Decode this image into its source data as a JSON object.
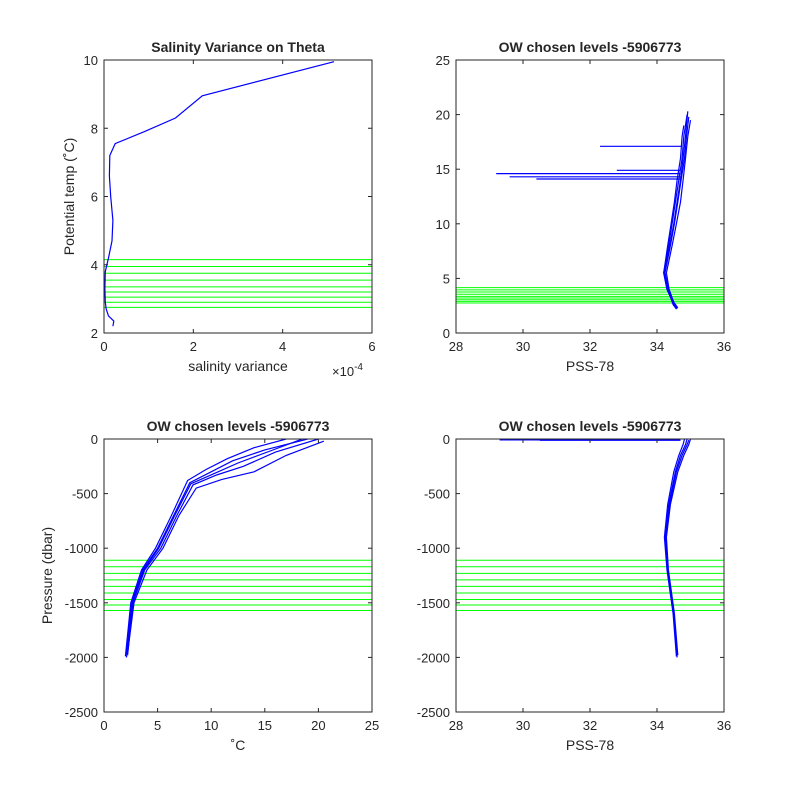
{
  "chart_data": [
    {
      "type": "line",
      "title": "Salinity Variance on Theta",
      "xlabel": "salinity variance",
      "ylabel": "Potential temp (˚C)",
      "x_exponent": "×10",
      "x_exponent_power": "-4",
      "xlim": [
        0,
        6
      ],
      "ylim": [
        2,
        10
      ],
      "xticks": [
        0,
        2,
        4,
        6
      ],
      "yticks": [
        2,
        4,
        6,
        8,
        10
      ],
      "xtick_labels": [
        "0",
        "2",
        "4",
        "6"
      ],
      "ytick_labels": [
        "2",
        "4",
        "6",
        "8",
        "10"
      ],
      "series": [
        {
          "color": "#0000ff",
          "points": [
            [
              0.2,
              2.2
            ],
            [
              0.22,
              2.35
            ],
            [
              0.1,
              2.5
            ],
            [
              0.05,
              2.7
            ],
            [
              0.03,
              2.9
            ],
            [
              0.02,
              3.3
            ],
            [
              0.03,
              3.8
            ],
            [
              0.1,
              4.2
            ],
            [
              0.18,
              4.7
            ],
            [
              0.2,
              5.3
            ],
            [
              0.15,
              6.0
            ],
            [
              0.12,
              6.6
            ],
            [
              0.13,
              7.2
            ],
            [
              0.25,
              7.55
            ],
            [
              0.9,
              7.9
            ],
            [
              1.6,
              8.3
            ],
            [
              2.2,
              8.95
            ],
            [
              5.15,
              9.95
            ]
          ]
        }
      ],
      "chosen_levels": {
        "color": "#00ff00",
        "values": [
          2.75,
          2.9,
          3.05,
          3.2,
          3.35,
          3.55,
          3.75,
          3.95,
          4.15
        ]
      }
    },
    {
      "type": "line",
      "title": "OW chosen levels -5906773",
      "xlabel": "PSS-78",
      "ylabel": "",
      "xlim": [
        28,
        36
      ],
      "ylim": [
        0,
        25
      ],
      "xticks": [
        28,
        30,
        32,
        34,
        36
      ],
      "yticks": [
        0,
        5,
        10,
        15,
        20,
        25
      ],
      "xtick_labels": [
        "28",
        "30",
        "32",
        "34",
        "36"
      ],
      "ytick_labels": [
        "0",
        "5",
        "10",
        "15",
        "20",
        "25"
      ],
      "series": [
        {
          "color": "#0000ff",
          "profiles": [
            [
              [
                34.6,
                2.2
              ],
              [
                34.5,
                2.6
              ],
              [
                34.3,
                4.0
              ],
              [
                34.2,
                5.5
              ],
              [
                34.35,
                8
              ],
              [
                34.45,
                10
              ],
              [
                34.55,
                12
              ],
              [
                34.65,
                14
              ],
              [
                34.75,
                16
              ],
              [
                34.8,
                18
              ],
              [
                34.9,
                20
              ]
            ],
            [
              [
                34.62,
                2.3
              ],
              [
                34.52,
                2.7
              ],
              [
                34.34,
                4.0
              ],
              [
                34.24,
                5.5
              ],
              [
                34.4,
                8
              ],
              [
                34.52,
                10
              ],
              [
                34.62,
                12
              ],
              [
                34.72,
                14
              ],
              [
                34.82,
                16
              ],
              [
                34.88,
                18
              ],
              [
                34.95,
                19.8
              ]
            ],
            [
              [
                34.58,
                2.2
              ],
              [
                34.48,
                2.6
              ],
              [
                34.32,
                4.0
              ],
              [
                34.22,
                5.5
              ],
              [
                34.38,
                8
              ],
              [
                34.5,
                10
              ],
              [
                34.6,
                12
              ],
              [
                34.7,
                14
              ],
              [
                34.78,
                16
              ],
              [
                34.85,
                18
              ],
              [
                34.92,
                20.3
              ]
            ],
            [
              [
                34.6,
                2.4
              ],
              [
                34.5,
                2.8
              ],
              [
                34.36,
                4.0
              ],
              [
                34.28,
                5.5
              ],
              [
                34.45,
                8
              ],
              [
                34.58,
                10
              ],
              [
                34.7,
                12
              ],
              [
                34.78,
                14
              ],
              [
                34.85,
                16
              ],
              [
                34.92,
                18
              ],
              [
                35.0,
                19.5
              ]
            ],
            [
              [
                34.61,
                2.3
              ],
              [
                34.49,
                2.7
              ],
              [
                34.3,
                4.0
              ],
              [
                34.2,
                5.5
              ],
              [
                34.32,
                8
              ],
              [
                34.42,
                10
              ],
              [
                34.52,
                12
              ],
              [
                34.6,
                14
              ],
              [
                34.7,
                16
              ],
              [
                34.75,
                18
              ],
              [
                34.8,
                19.0
              ]
            ]
          ],
          "spikes": [
            [
              [
                34.75,
                17.1
              ],
              [
                32.3,
                17.1
              ]
            ],
            [
              [
                34.7,
                14.9
              ],
              [
                32.8,
                14.9
              ]
            ],
            [
              [
                34.7,
                14.6
              ],
              [
                29.2,
                14.6
              ]
            ],
            [
              [
                34.7,
                14.3
              ],
              [
                29.6,
                14.3
              ]
            ],
            [
              [
                34.7,
                14.1
              ],
              [
                30.4,
                14.1
              ]
            ]
          ]
        }
      ],
      "chosen_levels": {
        "color": "#00ff00",
        "values": [
          2.75,
          2.9,
          3.05,
          3.2,
          3.35,
          3.55,
          3.75,
          3.95,
          4.15
        ]
      }
    },
    {
      "type": "line",
      "title": "OW chosen levels -5906773",
      "xlabel": "˚C",
      "ylabel": "Pressure (dbar)",
      "xlim": [
        0,
        25
      ],
      "ylim": [
        -2500,
        0
      ],
      "xticks": [
        0,
        5,
        10,
        15,
        20,
        25
      ],
      "yticks": [
        -2500,
        -2000,
        -1500,
        -1000,
        -500,
        0
      ],
      "xtick_labels": [
        "0",
        "5",
        "10",
        "15",
        "20",
        "25"
      ],
      "ytick_labels": [
        "-2500",
        "-2000",
        "-1500",
        "-1000",
        "-500",
        "0"
      ],
      "series": [
        {
          "color": "#0000ff",
          "profiles": [
            [
              [
                2.1,
                -2000
              ],
              [
                2.6,
                -1500
              ],
              [
                3.6,
                -1200
              ],
              [
                5,
                -1000
              ],
              [
                6.5,
                -700
              ],
              [
                8,
                -400
              ],
              [
                10,
                -300
              ],
              [
                12,
                -200
              ],
              [
                15,
                -100
              ],
              [
                19,
                0
              ]
            ],
            [
              [
                2.2,
                -1980
              ],
              [
                2.7,
                -1500
              ],
              [
                3.8,
                -1200
              ],
              [
                5.3,
                -1000
              ],
              [
                6.8,
                -700
              ],
              [
                8.3,
                -420
              ],
              [
                10.5,
                -330
              ],
              [
                13,
                -250
              ],
              [
                16,
                -120
              ],
              [
                20,
                0
              ]
            ],
            [
              [
                2.0,
                -1990
              ],
              [
                2.5,
                -1500
              ],
              [
                3.5,
                -1200
              ],
              [
                4.8,
                -1000
              ],
              [
                6.3,
                -700
              ],
              [
                7.8,
                -380
              ],
              [
                9.5,
                -280
              ],
              [
                11.5,
                -180
              ],
              [
                14,
                -80
              ],
              [
                17,
                0
              ]
            ],
            [
              [
                2.2,
                -1960
              ],
              [
                2.8,
                -1500
              ],
              [
                4.0,
                -1200
              ],
              [
                5.5,
                -1000
              ],
              [
                7.0,
                -700
              ],
              [
                8.6,
                -450
              ],
              [
                11,
                -370
              ],
              [
                14,
                -300
              ],
              [
                17,
                -150
              ],
              [
                20.5,
                -20
              ]
            ],
            [
              [
                2.1,
                -1970
              ],
              [
                2.6,
                -1500
              ],
              [
                3.7,
                -1200
              ],
              [
                5.1,
                -1000
              ],
              [
                6.6,
                -700
              ],
              [
                8.1,
                -410
              ],
              [
                10.2,
                -320
              ],
              [
                12.5,
                -220
              ],
              [
                15.5,
                -110
              ],
              [
                18.5,
                0
              ]
            ]
          ],
          "spikes": []
        }
      ],
      "chosen_levels": {
        "color": "#00ff00",
        "values": [
          -1110,
          -1170,
          -1230,
          -1290,
          -1350,
          -1410,
          -1470,
          -1520,
          -1570
        ]
      }
    },
    {
      "type": "line",
      "title": "OW chosen levels -5906773",
      "xlabel": "PSS-78",
      "ylabel": "",
      "xlim": [
        28,
        36
      ],
      "ylim": [
        -2500,
        0
      ],
      "xticks": [
        28,
        30,
        32,
        34,
        36
      ],
      "yticks": [
        -2500,
        -2000,
        -1500,
        -1000,
        -500,
        0
      ],
      "xtick_labels": [
        "28",
        "30",
        "32",
        "34",
        "36"
      ],
      "ytick_labels": [
        "-2500",
        "-2000",
        "-1500",
        "-1000",
        "-500",
        "0"
      ],
      "series": [
        {
          "color": "#0000ff",
          "profiles": [
            [
              [
                34.6,
                -2000
              ],
              [
                34.5,
                -1600
              ],
              [
                34.32,
                -1200
              ],
              [
                34.25,
                -900
              ],
              [
                34.35,
                -600
              ],
              [
                34.55,
                -300
              ],
              [
                34.7,
                -150
              ],
              [
                34.85,
                -50
              ],
              [
                34.9,
                0
              ]
            ],
            [
              [
                34.62,
                -1980
              ],
              [
                34.52,
                -1600
              ],
              [
                34.34,
                -1200
              ],
              [
                34.28,
                -900
              ],
              [
                34.4,
                -600
              ],
              [
                34.62,
                -300
              ],
              [
                34.8,
                -150
              ],
              [
                34.95,
                -50
              ],
              [
                35.0,
                0
              ]
            ],
            [
              [
                34.58,
                -1990
              ],
              [
                34.48,
                -1600
              ],
              [
                34.3,
                -1200
              ],
              [
                34.22,
                -900
              ],
              [
                34.32,
                -600
              ],
              [
                34.5,
                -300
              ],
              [
                34.65,
                -150
              ],
              [
                34.78,
                -50
              ],
              [
                34.82,
                0
              ]
            ],
            [
              [
                34.61,
                -1970
              ],
              [
                34.5,
                -1600
              ],
              [
                34.33,
                -1200
              ],
              [
                34.26,
                -900
              ],
              [
                34.38,
                -600
              ],
              [
                34.58,
                -300
              ],
              [
                34.75,
                -150
              ],
              [
                34.9,
                -50
              ],
              [
                34.95,
                -10
              ]
            ]
          ],
          "spikes": [
            [
              [
                34.7,
                -8
              ],
              [
                29.3,
                -8
              ]
            ],
            [
              [
                34.7,
                -12
              ],
              [
                30.5,
                -12
              ]
            ]
          ]
        }
      ],
      "chosen_levels": {
        "color": "#00ff00",
        "values": [
          -1110,
          -1170,
          -1230,
          -1290,
          -1350,
          -1410,
          -1470,
          -1520,
          -1570
        ]
      }
    }
  ]
}
